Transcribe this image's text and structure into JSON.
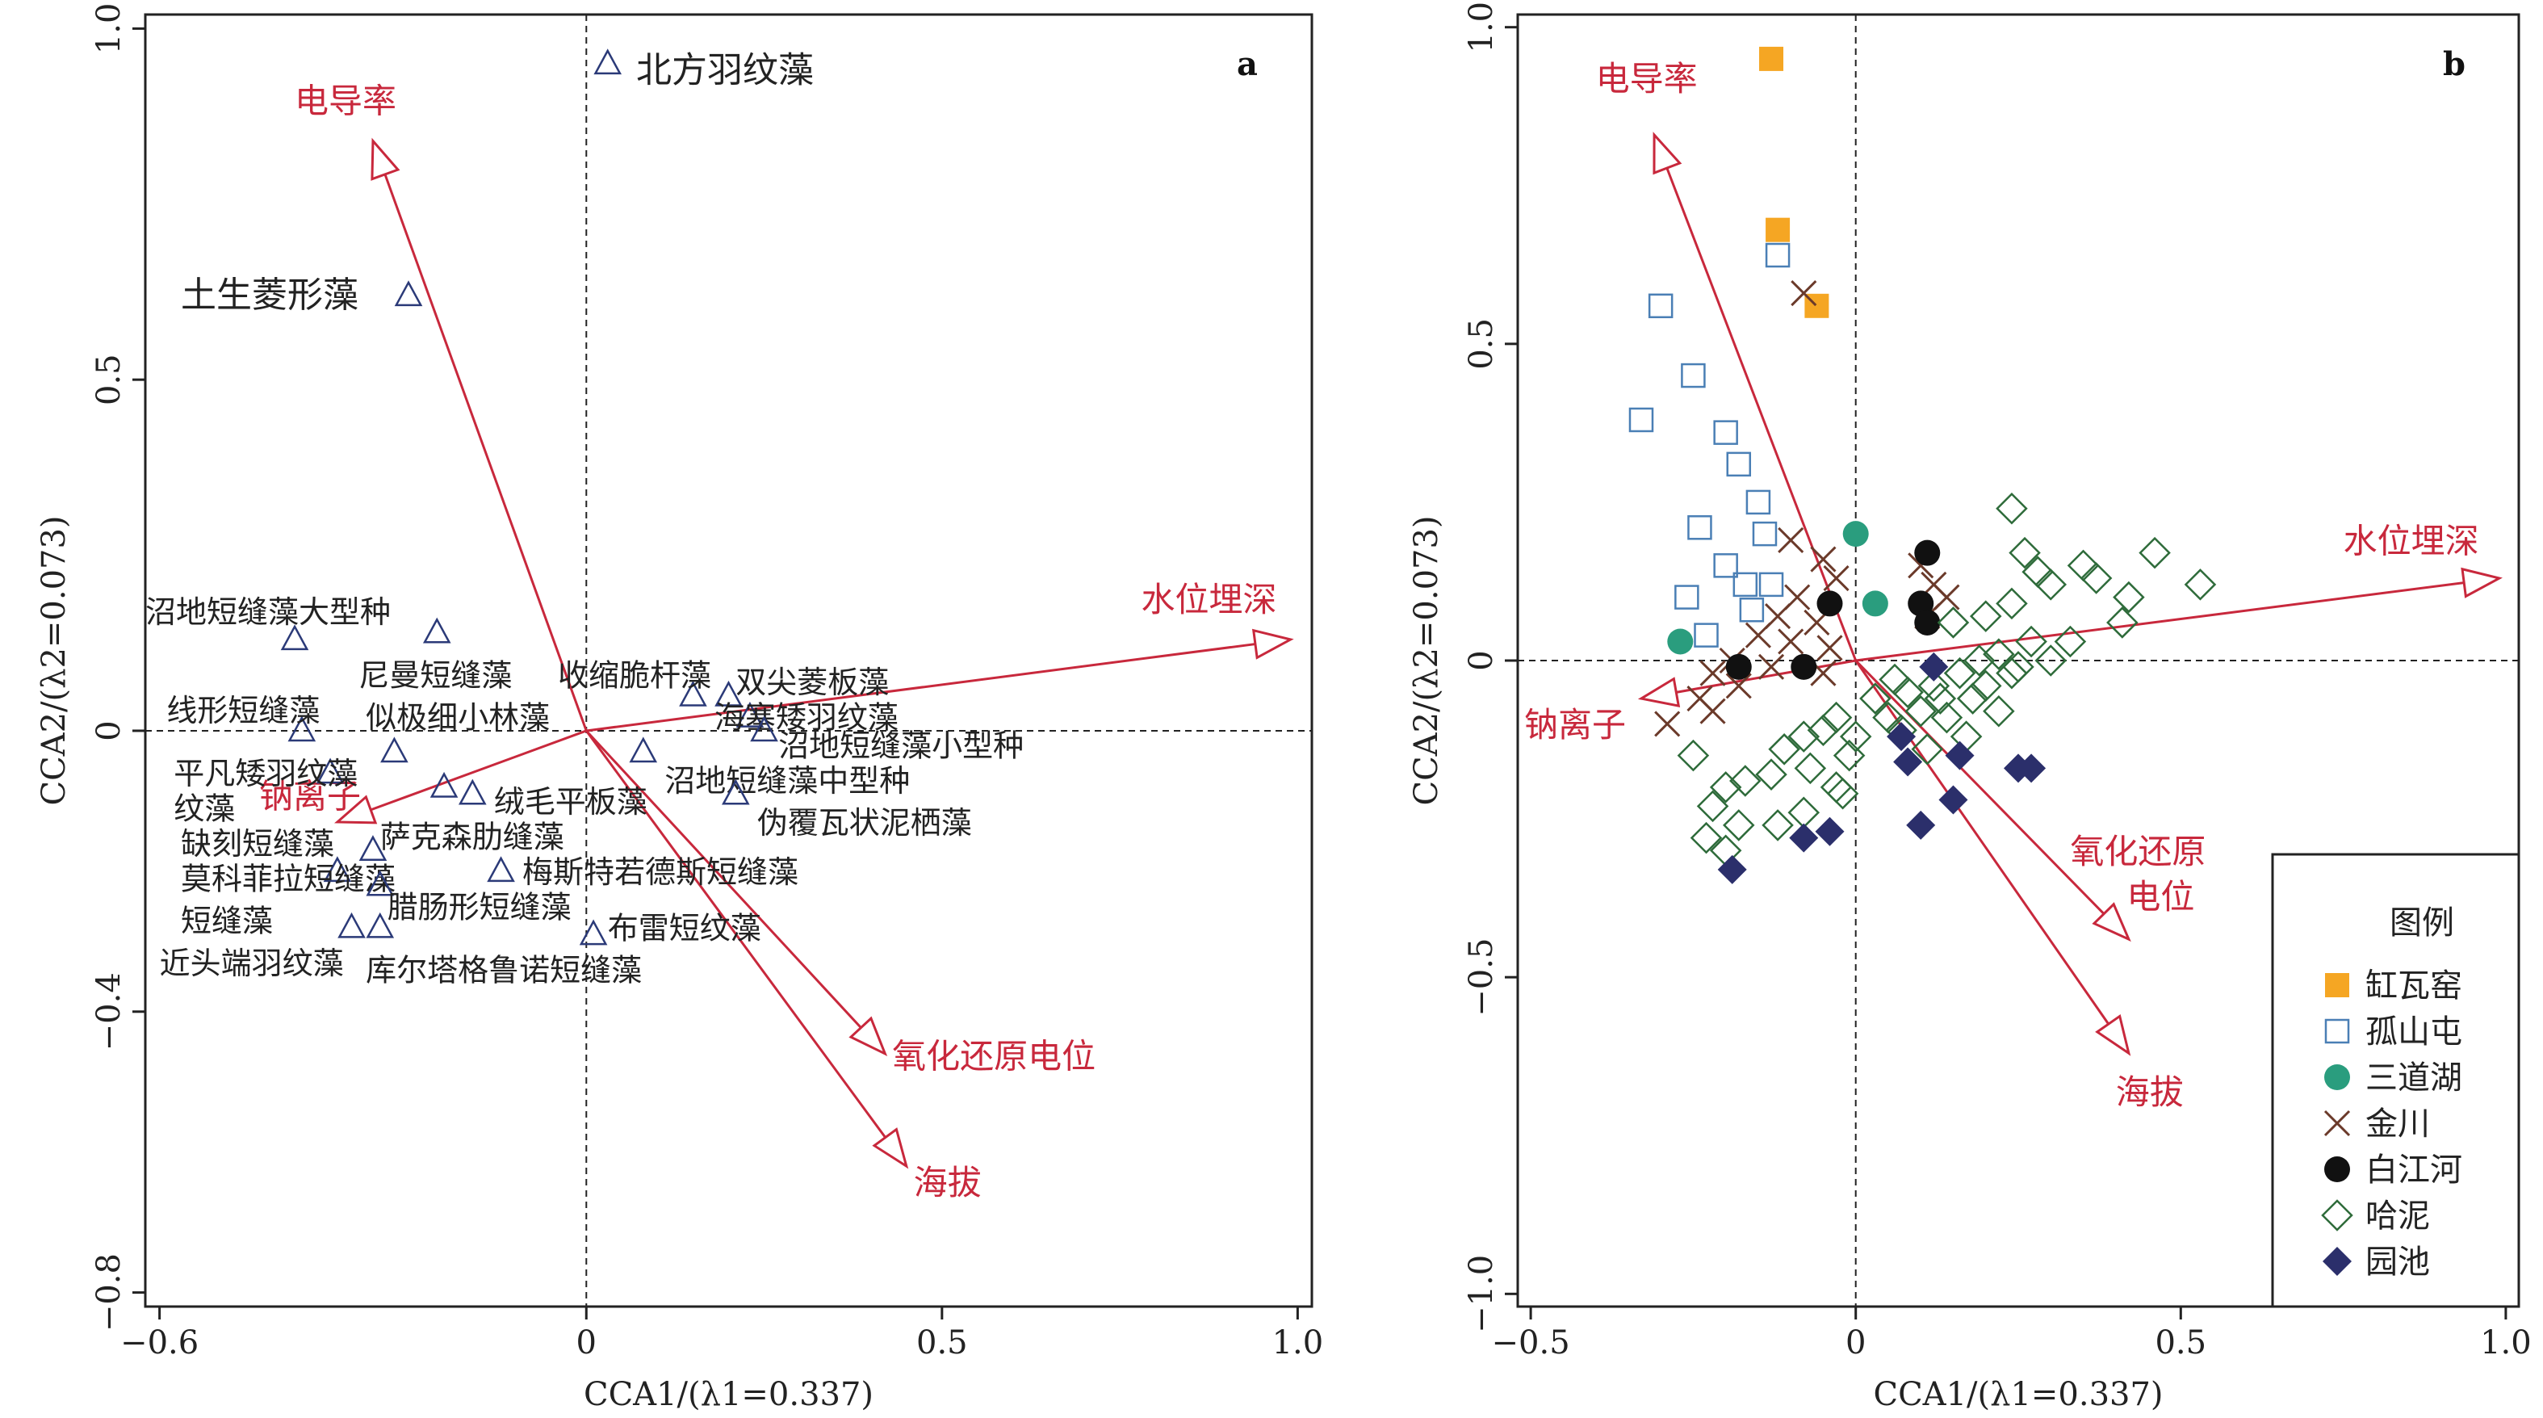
{
  "colors": {
    "axis": "#222222",
    "env_arrow": "#c8283c",
    "species_marker": "#2b3a78",
    "site_colors": {
      "缸瓦窑": "#f5a623",
      "孤山屯": "#4a7fb5",
      "三道湖": "#2a9d7e",
      "金川": "#6b3a2a",
      "白江河": "#111111",
      "哈泥": "#2e6b3a",
      "园池": "#2b2f6b"
    }
  },
  "chart_data": [
    {
      "type": "scatter",
      "panel_label": "a",
      "xlabel": "CCA1/(λ1=0.337)",
      "ylabel": "CCA2/(λ2=0.073)",
      "xlim": [
        -0.62,
        1.02
      ],
      "ylim": [
        -0.82,
        1.02
      ],
      "xticks": [
        -0.6,
        0,
        0.5,
        1.0
      ],
      "xtick_labels": [
        "−0.6",
        "0",
        "0.5",
        "1.0"
      ],
      "yticks": [
        -0.8,
        -0.4,
        0,
        0.5,
        1.0
      ],
      "ytick_labels": [
        "−0.8",
        "−0.4",
        "0",
        "0.5",
        "1.0"
      ],
      "species": [
        {
          "name": "北方羽纹藻",
          "x": 0.03,
          "y": 0.95,
          "label_pos": [
            0.07,
            0.94
          ],
          "big": true
        },
        {
          "name": "土生菱形藻",
          "x": -0.25,
          "y": 0.62,
          "label_pos": [
            -0.57,
            0.62
          ],
          "big": true
        },
        {
          "name": "沼地短缝藻大型种",
          "x": -0.41,
          "y": 0.13,
          "label_pos": [
            -0.62,
            0.17
          ]
        },
        {
          "name": "尼曼短缝藻",
          "x": -0.21,
          "y": 0.14,
          "label_pos": [
            -0.32,
            0.08
          ]
        },
        {
          "name": "线形短缝藻",
          "x": -0.4,
          "y": 0.0,
          "label_pos": [
            -0.59,
            0.03
          ]
        },
        {
          "name": "似极细小林藻",
          "x": -0.27,
          "y": -0.03,
          "label_pos": [
            -0.31,
            0.02
          ]
        },
        {
          "name": "平凡矮羽纹藻",
          "x": -0.36,
          "y": -0.06,
          "label_pos": [
            -0.58,
            -0.06
          ],
          "label2": "纹藻",
          "label2_pos": [
            -0.58,
            -0.11
          ]
        },
        {
          "name": "绒毛平板藻",
          "x": -0.16,
          "y": -0.09,
          "label_pos": [
            -0.13,
            -0.1
          ]
        },
        {
          "name": "萨克森肋缝藻",
          "x": -0.2,
          "y": -0.08,
          "label_pos": [
            -0.29,
            -0.15
          ]
        },
        {
          "name": "缺刻短缝藻",
          "x": -0.3,
          "y": -0.17,
          "label_pos": [
            -0.57,
            -0.16
          ]
        },
        {
          "name": "莫科菲拉短缝藻",
          "x": -0.35,
          "y": -0.2,
          "label_pos": [
            -0.57,
            -0.21
          ],
          "label2": "短缝藻",
          "label2_pos": [
            -0.57,
            -0.27
          ]
        },
        {
          "name": "腊肠形短缝藻",
          "x": -0.29,
          "y": -0.22,
          "label_pos": [
            -0.28,
            -0.25
          ]
        },
        {
          "name": "梅斯特若德斯短缝藻",
          "x": -0.12,
          "y": -0.2,
          "label_pos": [
            -0.09,
            -0.2
          ]
        },
        {
          "name": "近头端羽纹藻",
          "x": -0.33,
          "y": -0.28,
          "label_pos": [
            -0.6,
            -0.33
          ]
        },
        {
          "name": "库尔塔格鲁诺短缝藻",
          "x": -0.29,
          "y": -0.28,
          "label_pos": [
            -0.31,
            -0.34
          ]
        },
        {
          "name": "布雷短纹藻",
          "x": 0.01,
          "y": -0.29,
          "label_pos": [
            0.03,
            -0.28
          ]
        },
        {
          "name": "收缩脆杆藻",
          "x": 0.15,
          "y": 0.05,
          "label_pos": [
            -0.04,
            0.08
          ]
        },
        {
          "name": "双尖菱板藻",
          "x": 0.2,
          "y": 0.05,
          "label_pos": [
            0.21,
            0.07
          ]
        },
        {
          "name": "海塞矮羽纹藻",
          "x": 0.23,
          "y": 0.02,
          "label_pos": [
            0.18,
            0.02
          ]
        },
        {
          "name": "沼地短缝藻小型种",
          "x": 0.25,
          "y": 0.0,
          "label_pos": [
            0.27,
            -0.02
          ]
        },
        {
          "name": "沼地短缝藻中型种",
          "x": 0.08,
          "y": -0.03,
          "label_pos": [
            0.11,
            -0.07
          ]
        },
        {
          "name": "伪覆瓦状泥栖藻",
          "x": 0.21,
          "y": -0.09,
          "label_pos": [
            0.24,
            -0.13
          ]
        }
      ],
      "env_vectors": [
        {
          "name": "电导率",
          "x": -0.3,
          "y": 0.84,
          "label_pos": [
            -0.41,
            0.88
          ]
        },
        {
          "name": "水位埋深",
          "x": 0.99,
          "y": 0.13,
          "label_pos": [
            0.78,
            0.17
          ]
        },
        {
          "name": "钠离子",
          "x": -0.35,
          "y": -0.13,
          "label_pos": [
            -0.46,
            -0.11
          ]
        },
        {
          "name": "氧化还原电位",
          "x": 0.42,
          "y": -0.46,
          "label_pos": [
            0.43,
            -0.48
          ]
        },
        {
          "name": "海拔",
          "x": 0.45,
          "y": -0.62,
          "label_pos": [
            0.46,
            -0.66
          ]
        }
      ]
    },
    {
      "type": "scatter",
      "panel_label": "b",
      "xlabel": "CCA1/(λ1=0.337)",
      "ylabel": "CCA2/(λ2=0.073)",
      "xlim": [
        -0.52,
        1.02
      ],
      "ylim": [
        -1.02,
        1.02
      ],
      "xticks": [
        -0.5,
        0,
        0.5,
        1.0
      ],
      "xtick_labels": [
        "−0.5",
        "0",
        "0.5",
        "1.0"
      ],
      "yticks": [
        -1.0,
        -0.5,
        0,
        0.5,
        1.0
      ],
      "ytick_labels": [
        "−1.0",
        "−0.5",
        "0",
        "0.5",
        "1.0"
      ],
      "legend_title": "图例",
      "legend_position": "bottom-right",
      "series": [
        {
          "name": "缸瓦窑",
          "marker": "filled-square",
          "points": [
            [
              -0.13,
              0.95
            ],
            [
              -0.12,
              0.68
            ],
            [
              -0.06,
              0.56
            ]
          ]
        },
        {
          "name": "孤山屯",
          "marker": "open-square",
          "points": [
            [
              -0.12,
              0.64
            ],
            [
              -0.3,
              0.56
            ],
            [
              -0.25,
              0.45
            ],
            [
              -0.33,
              0.38
            ],
            [
              -0.2,
              0.36
            ],
            [
              -0.18,
              0.31
            ],
            [
              -0.15,
              0.25
            ],
            [
              -0.24,
              0.21
            ],
            [
              -0.14,
              0.2
            ],
            [
              -0.2,
              0.15
            ],
            [
              -0.26,
              0.1
            ],
            [
              -0.17,
              0.12
            ],
            [
              -0.13,
              0.12
            ],
            [
              -0.23,
              0.04
            ],
            [
              -0.16,
              0.08
            ]
          ]
        },
        {
          "name": "三道湖",
          "marker": "filled-circle",
          "points": [
            [
              0.0,
              0.2
            ],
            [
              0.03,
              0.09
            ],
            [
              -0.27,
              0.03
            ]
          ]
        },
        {
          "name": "金川",
          "marker": "x",
          "points": [
            [
              -0.08,
              0.58
            ],
            [
              -0.1,
              0.19
            ],
            [
              -0.05,
              0.16
            ],
            [
              -0.03,
              0.13
            ],
            [
              -0.09,
              0.1
            ],
            [
              -0.12,
              0.07
            ],
            [
              -0.06,
              0.06
            ],
            [
              -0.15,
              0.04
            ],
            [
              -0.1,
              0.03
            ],
            [
              -0.04,
              0.02
            ],
            [
              -0.19,
              0.0
            ],
            [
              -0.13,
              -0.01
            ],
            [
              -0.22,
              -0.02
            ],
            [
              -0.18,
              -0.04
            ],
            [
              -0.24,
              -0.06
            ],
            [
              -0.29,
              -0.1
            ],
            [
              -0.22,
              -0.08
            ],
            [
              -0.05,
              -0.02
            ],
            [
              0.1,
              0.15
            ],
            [
              0.12,
              0.12
            ],
            [
              0.14,
              0.1
            ],
            [
              0.11,
              0.07
            ]
          ]
        },
        {
          "name": "白江河",
          "marker": "filled-circle",
          "points": [
            [
              0.11,
              0.17
            ],
            [
              -0.04,
              0.09
            ],
            [
              0.1,
              0.09
            ],
            [
              0.11,
              0.06
            ],
            [
              -0.18,
              -0.01
            ],
            [
              -0.08,
              -0.01
            ]
          ]
        },
        {
          "name": "哈泥",
          "marker": "open-diamond",
          "points": [
            [
              0.24,
              0.24
            ],
            [
              0.26,
              0.17
            ],
            [
              0.28,
              0.14
            ],
            [
              0.35,
              0.15
            ],
            [
              0.46,
              0.17
            ],
            [
              0.53,
              0.12
            ],
            [
              0.37,
              0.13
            ],
            [
              0.3,
              0.12
            ],
            [
              0.42,
              0.1
            ],
            [
              0.24,
              0.09
            ],
            [
              0.2,
              0.07
            ],
            [
              0.15,
              0.06
            ],
            [
              0.41,
              0.06
            ],
            [
              0.33,
              0.03
            ],
            [
              0.27,
              0.03
            ],
            [
              0.22,
              0.01
            ],
            [
              0.3,
              0.0
            ],
            [
              0.25,
              -0.01
            ],
            [
              0.19,
              0.0
            ],
            [
              0.16,
              -0.02
            ],
            [
              0.12,
              -0.04
            ],
            [
              0.08,
              -0.05
            ],
            [
              0.13,
              -0.06
            ],
            [
              0.2,
              -0.04
            ],
            [
              0.24,
              -0.02
            ],
            [
              0.18,
              -0.06
            ],
            [
              0.14,
              -0.09
            ],
            [
              0.22,
              -0.08
            ],
            [
              0.1,
              -0.08
            ],
            [
              0.06,
              -0.03
            ],
            [
              0.03,
              -0.06
            ],
            [
              0.05,
              -0.09
            ],
            [
              0.07,
              -0.11
            ],
            [
              0.17,
              -0.12
            ],
            [
              0.11,
              -0.14
            ],
            [
              0.0,
              -0.12
            ],
            [
              -0.01,
              -0.15
            ],
            [
              -0.03,
              -0.09
            ],
            [
              -0.05,
              -0.11
            ],
            [
              -0.08,
              -0.12
            ],
            [
              -0.03,
              -0.2
            ],
            [
              -0.07,
              -0.17
            ],
            [
              -0.11,
              -0.14
            ],
            [
              -0.13,
              -0.18
            ],
            [
              -0.17,
              -0.19
            ],
            [
              -0.2,
              -0.2
            ],
            [
              -0.25,
              -0.15
            ],
            [
              -0.22,
              -0.23
            ],
            [
              -0.18,
              -0.26
            ],
            [
              -0.12,
              -0.26
            ],
            [
              -0.08,
              -0.24
            ],
            [
              -0.02,
              -0.21
            ],
            [
              -0.23,
              -0.28
            ],
            [
              -0.2,
              -0.3
            ]
          ]
        },
        {
          "name": "园池",
          "marker": "filled-diamond",
          "points": [
            [
              0.12,
              -0.01
            ],
            [
              0.07,
              -0.12
            ],
            [
              0.16,
              -0.15
            ],
            [
              0.25,
              -0.17
            ],
            [
              0.27,
              -0.17
            ],
            [
              0.08,
              -0.16
            ],
            [
              0.15,
              -0.22
            ],
            [
              0.1,
              -0.26
            ],
            [
              -0.04,
              -0.27
            ],
            [
              -0.08,
              -0.28
            ],
            [
              -0.19,
              -0.33
            ]
          ]
        }
      ],
      "env_vectors": [
        {
          "name": "电导率",
          "x": -0.31,
          "y": 0.83,
          "label_pos": [
            -0.4,
            0.9
          ]
        },
        {
          "name": "水位埋深",
          "x": 0.99,
          "y": 0.13,
          "label_pos": [
            0.75,
            0.17
          ]
        },
        {
          "name": "钠离子",
          "x": -0.33,
          "y": -0.06,
          "label_pos": [
            -0.51,
            -0.12
          ]
        },
        {
          "name": "氧化还原电位",
          "x": 0.42,
          "y": -0.44,
          "label_pos": [
            0.33,
            -0.32
          ],
          "label_lines": [
            "氧化还原",
            "电位"
          ]
        },
        {
          "name": "海拔",
          "x": 0.42,
          "y": -0.62,
          "label_pos": [
            0.4,
            -0.7
          ]
        }
      ]
    }
  ]
}
